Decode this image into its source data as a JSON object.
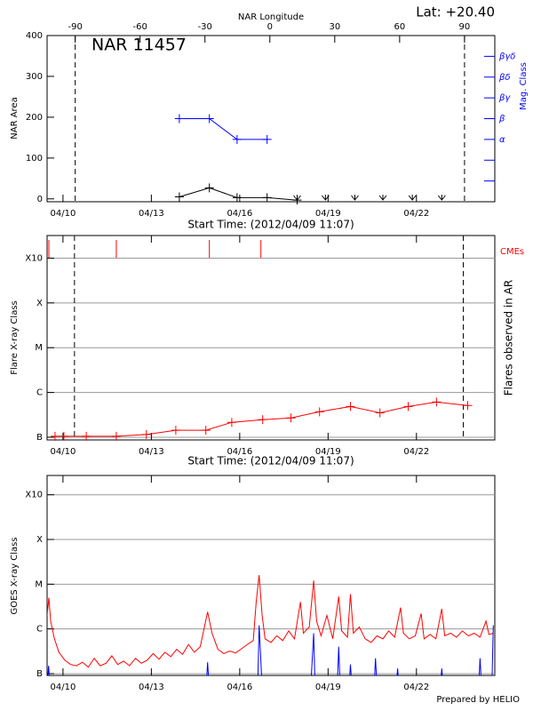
{
  "chart_data": [
    {
      "type": "line",
      "title": "NAR 11457",
      "annotation": "Lat: +20.40",
      "x2label": "NAR Longitude",
      "x2lim": [
        -103,
        104
      ],
      "x2ticks": [
        -90,
        -60,
        -30,
        0,
        30,
        60,
        90
      ],
      "xlabel": "Start Time: (2012/04/09 11:07)",
      "ylabel": "NAR Area",
      "y2label": "Mag. Class",
      "xlim": [
        0,
        15.2
      ],
      "xticks": [
        {
          "value": 0.54,
          "label": "04/10"
        },
        {
          "value": 3.54,
          "label": "04/13"
        },
        {
          "value": 6.54,
          "label": "04/16"
        },
        {
          "value": 9.54,
          "label": "04/19"
        },
        {
          "value": 12.54,
          "label": "04/22"
        }
      ],
      "ylim": [
        -7,
        400
      ],
      "yticks": [
        0,
        100,
        200,
        300,
        400
      ],
      "y2lim": [
        0,
        8
      ],
      "y2ticks": [
        {
          "value": 3,
          "label": "α"
        },
        {
          "value": 4,
          "label": "β"
        },
        {
          "value": 5,
          "label": "βγ"
        },
        {
          "value": 6,
          "label": "βδ"
        },
        {
          "value": 7,
          "label": "βγδ"
        }
      ],
      "y2minor": [
        1,
        2
      ],
      "series": [
        {
          "color": "#000000",
          "marker": "+",
          "x": [
            4.49,
            5.51,
            6.45,
            7.47,
            8.49
          ],
          "values": [
            5,
            27,
            3,
            3,
            -3
          ]
        },
        {
          "color": "#0000ff",
          "axis": "y2",
          "marker": "+",
          "x": [
            4.49,
            5.51,
            6.45,
            7.47
          ],
          "values": [
            4,
            4,
            3,
            3
          ]
        }
      ],
      "no_data_x": [
        8.49,
        9.45,
        10.45,
        11.4,
        12.4,
        13.4
      ],
      "vlines_x2": [
        -90,
        90
      ]
    },
    {
      "type": "line",
      "ylabel": "Flare X-ray Class",
      "y2label": "Flares observed in AR",
      "xlabel": "Start Time: (2012/04/09 11:07)",
      "cme_label": "CMEs",
      "cme_color": "#ff0000",
      "xlim": [
        0,
        15.2
      ],
      "xticks": [
        {
          "value": 0.54,
          "label": "04/10"
        },
        {
          "value": 3.54,
          "label": "04/13"
        },
        {
          "value": 6.54,
          "label": "04/16"
        },
        {
          "value": 9.54,
          "label": "04/19"
        },
        {
          "value": 12.54,
          "label": "04/22"
        }
      ],
      "ylim": [
        8.7e-08,
        0.0032
      ],
      "log_y": true,
      "grid": true,
      "yticks": [
        {
          "value": 1e-07,
          "label": "B"
        },
        {
          "value": 1e-06,
          "label": "C"
        },
        {
          "value": 1e-05,
          "label": "M"
        },
        {
          "value": 0.0001,
          "label": "X"
        },
        {
          "value": 0.001,
          "label": "X10"
        }
      ],
      "series": [
        {
          "color": "#ff0000",
          "marker": "+",
          "x": [
            0.27,
            0.57,
            1.33,
            2.35,
            3.37,
            4.37,
            5.39,
            6.27,
            7.32,
            8.28,
            9.25,
            10.3,
            11.3,
            12.26,
            13.22,
            14.28
          ],
          "values": [
            1.05e-07,
            1.05e-07,
            1.05e-07,
            1.05e-07,
            1.15e-07,
            1.43e-07,
            1.43e-07,
            2.15e-07,
            2.47e-07,
            2.7e-07,
            3.7e-07,
            4.86e-07,
            3.5e-07,
            4.86e-07,
            6.1e-07,
            5.1e-07
          ]
        }
      ],
      "cmes_x": [
        0.06,
        2.35,
        5.51,
        7.26
      ],
      "vlines_x": [
        0.93,
        14.13
      ]
    },
    {
      "type": "line",
      "ylabel": "GOES X-ray Class",
      "footer": "Prepared by HELIO",
      "xlim": [
        0,
        15.2
      ],
      "xticks": [
        {
          "value": 0.54,
          "label": "04/10"
        },
        {
          "value": 3.54,
          "label": "04/13"
        },
        {
          "value": 6.54,
          "label": "04/16"
        },
        {
          "value": 9.54,
          "label": "04/19"
        },
        {
          "value": 12.54,
          "label": "04/22"
        }
      ],
      "ylim": [
        9.1e-08,
        0.0027
      ],
      "log_y": true,
      "grid": true,
      "yticks": [
        {
          "value": 1e-07,
          "label": "B"
        },
        {
          "value": 1e-06,
          "label": "C"
        },
        {
          "value": 1e-05,
          "label": "M"
        },
        {
          "value": 0.0001,
          "label": "X"
        },
        {
          "value": 0.001,
          "label": "X10"
        }
      ],
      "series": [
        {
          "color": "#ff0000",
          "x": [
            0.0,
            0.06,
            0.12,
            0.25,
            0.4,
            0.6,
            0.8,
            1.0,
            1.2,
            1.4,
            1.6,
            1.8,
            2.0,
            2.2,
            2.4,
            2.6,
            2.8,
            3.0,
            3.2,
            3.4,
            3.6,
            3.8,
            4.0,
            4.2,
            4.4,
            4.6,
            4.8,
            5.0,
            5.2,
            5.45,
            5.6,
            5.8,
            6.0,
            6.2,
            6.4,
            6.6,
            6.8,
            7.0,
            7.1,
            7.2,
            7.3,
            7.4,
            7.6,
            7.8,
            8.0,
            8.2,
            8.4,
            8.6,
            8.7,
            8.9,
            9.05,
            9.15,
            9.3,
            9.5,
            9.7,
            9.9,
            10.0,
            10.2,
            10.3,
            10.4,
            10.6,
            10.8,
            11.0,
            11.2,
            11.4,
            11.6,
            11.8,
            12.0,
            12.1,
            12.3,
            12.5,
            12.7,
            12.8,
            13.0,
            13.2,
            13.4,
            13.5,
            13.7,
            13.9,
            14.1,
            14.3,
            14.5,
            14.7,
            14.9,
            15.0,
            15.15
          ],
          "values": [
            2e-06,
            5e-06,
            1.5e-06,
            6e-07,
            3e-07,
            2e-07,
            1.6e-07,
            1.5e-07,
            1.8e-07,
            1.4e-07,
            2.2e-07,
            1.5e-07,
            1.7e-07,
            2.5e-07,
            1.6e-07,
            1.9e-07,
            1.5e-07,
            2.2e-07,
            1.7e-07,
            2e-07,
            2.8e-07,
            2.1e-07,
            3e-07,
            2.4e-07,
            3.5e-07,
            2.7e-07,
            4.5e-07,
            3e-07,
            4e-07,
            2.4e-06,
            8e-07,
            3.5e-07,
            2.8e-07,
            3.2e-07,
            2.9e-07,
            3.6e-07,
            4.5e-07,
            5.5e-07,
            4e-06,
            1.6e-05,
            2e-06,
            6e-07,
            5e-07,
            7e-07,
            5.5e-07,
            9e-07,
            6e-07,
            4e-06,
            8e-07,
            1.1e-06,
            1.2e-05,
            1.5e-06,
            7e-07,
            2e-06,
            6e-07,
            5.3e-06,
            9e-07,
            6.5e-07,
            6e-06,
            8e-07,
            1.1e-06,
            6e-07,
            5e-07,
            7e-07,
            6e-07,
            9e-07,
            6.5e-07,
            3e-06,
            8e-07,
            6e-07,
            7e-07,
            2.2e-06,
            6e-07,
            7.5e-07,
            6e-07,
            2.8e-06,
            7e-07,
            8e-07,
            6.5e-07,
            9e-07,
            7e-07,
            8e-07,
            6.5e-07,
            1.5e-06,
            7.5e-07,
            8e-07
          ]
        },
        {
          "color": "#0000ff",
          "x": [
            0.0,
            0.05,
            0.1,
            5.4,
            5.45,
            5.5,
            7.15,
            7.2,
            7.3,
            8.95,
            9.05,
            9.1,
            9.85,
            9.9,
            9.95,
            10.25,
            10.3,
            10.35,
            11.1,
            11.15,
            11.2,
            11.85,
            11.9,
            11.95,
            13.35,
            13.4,
            13.45,
            14.65,
            14.7,
            14.75,
            15.1,
            15.15
          ],
          "values": [
            5e-08,
            1.5e-07,
            5e-08,
            5e-08,
            1.8e-07,
            5e-08,
            5e-08,
            1.2e-06,
            5e-08,
            5e-08,
            8e-07,
            5e-08,
            5e-08,
            4e-07,
            5e-08,
            5e-08,
            1.6e-07,
            5e-08,
            5e-08,
            2.2e-07,
            5e-08,
            5e-08,
            1.3e-07,
            5e-08,
            5e-08,
            1.3e-07,
            5e-08,
            5e-08,
            2.2e-07,
            5e-08,
            5e-08,
            1.2e-06
          ]
        }
      ]
    }
  ]
}
